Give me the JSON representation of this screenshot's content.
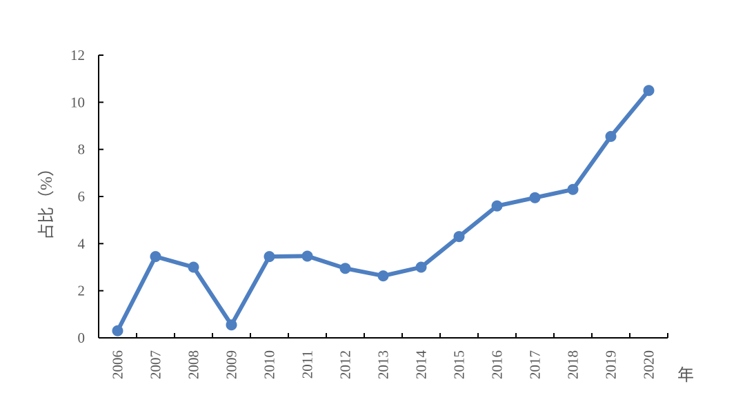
{
  "chart_data": {
    "type": "line",
    "title": "",
    "xlabel": "年",
    "ylabel": "占比（%）",
    "ylim": [
      0,
      12
    ],
    "yticks": [
      "0",
      "2",
      "4",
      "6",
      "8",
      "10",
      "12"
    ],
    "categories": [
      "2006",
      "2007",
      "2008",
      "2009",
      "2010",
      "2011",
      "2012",
      "2013",
      "2014",
      "2015",
      "2016",
      "2017",
      "2018",
      "2019",
      "2020"
    ],
    "series": [
      {
        "values": [
          0.3,
          3.45,
          3.0,
          0.55,
          3.45,
          3.47,
          2.95,
          2.63,
          3.0,
          4.3,
          5.6,
          5.95,
          6.3,
          8.55,
          10.5
        ],
        "color": "#4e7fc1",
        "marker": "circle"
      }
    ],
    "grid": false,
    "legend": "none",
    "axis_color": "#000000",
    "text_color": "#595959"
  }
}
